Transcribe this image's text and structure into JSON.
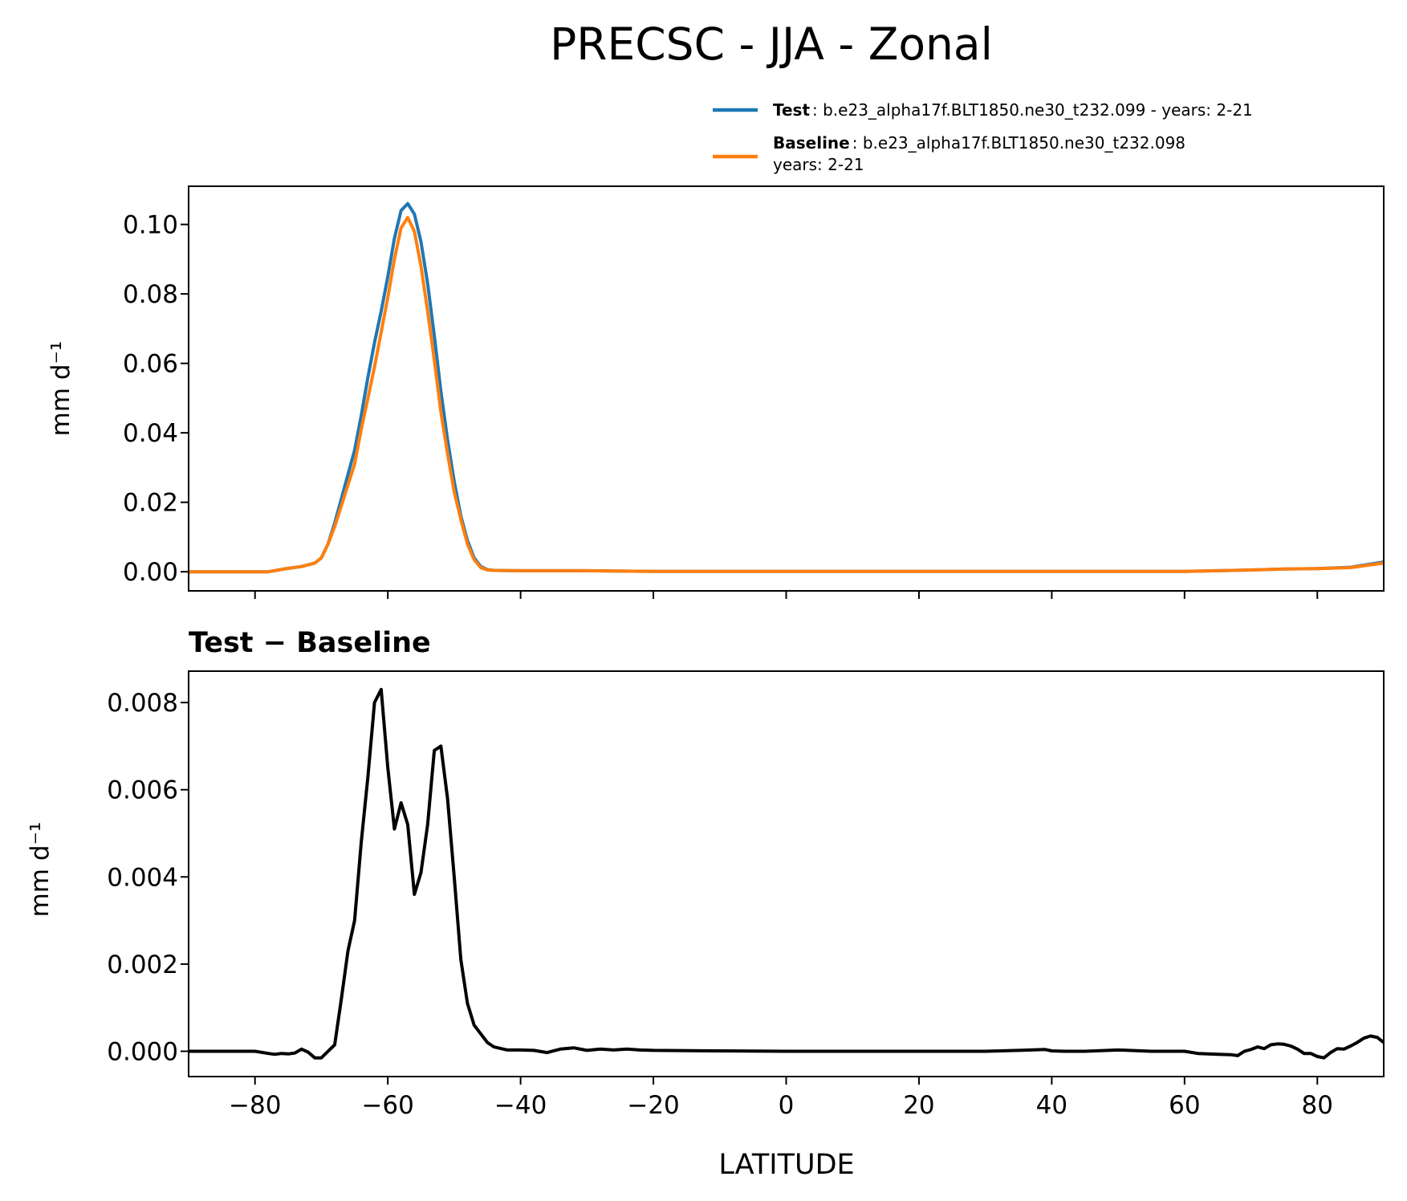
{
  "figure": {
    "title": "PRECSC - JJA - Zonal"
  },
  "legend": [
    {
      "name": "Test",
      "desc": ": b.e23_alpha17f.BLT1850.ne30_t232.099 - years: 2-21",
      "desc2": "",
      "color": "#1f77b4"
    },
    {
      "name": "Baseline",
      "desc": ": b.e23_alpha17f.BLT1850.ne30_t232.098",
      "desc2": "years: 2-21",
      "color": "#ff7f0e"
    }
  ],
  "chart_data": [
    {
      "type": "line",
      "title": "",
      "xlabel": "",
      "ylabel": "mm d⁻¹",
      "xlim": [
        -90,
        90
      ],
      "ylim": [
        -0.0055,
        0.111
      ],
      "xticks": [
        -80,
        -60,
        -40,
        -20,
        0,
        20,
        40,
        60,
        80
      ],
      "yticks": [
        0.0,
        0.02,
        0.04,
        0.06,
        0.08,
        0.1
      ],
      "ytick_labels": [
        "0.00",
        "0.02",
        "0.04",
        "0.06",
        "0.08",
        "0.10"
      ],
      "show_xtick_labels": false,
      "series": [
        {
          "name": "Test",
          "color": "#1f77b4",
          "x": [
            -90,
            -80,
            -78,
            -75,
            -73,
            -71,
            -70,
            -69,
            -68,
            -67,
            -66,
            -65,
            -64,
            -63,
            -62,
            -61,
            -60,
            -59,
            -58,
            -57,
            -56,
            -55,
            -54,
            -53,
            -52,
            -51,
            -50,
            -49,
            -48,
            -47,
            -46,
            -45,
            -44,
            -40,
            -35,
            -30,
            -20,
            0,
            20,
            40,
            60,
            65,
            70,
            75,
            80,
            85,
            90
          ],
          "y": [
            0,
            0,
            0,
            0.001,
            0.0015,
            0.0025,
            0.004,
            0.008,
            0.014,
            0.021,
            0.028,
            0.035,
            0.045,
            0.056,
            0.066,
            0.075,
            0.085,
            0.096,
            0.104,
            0.106,
            0.103,
            0.095,
            0.083,
            0.068,
            0.052,
            0.038,
            0.026,
            0.016,
            0.009,
            0.004,
            0.0015,
            0.0006,
            0.0004,
            0.0003,
            0.0003,
            0.0003,
            0.0001,
            0.0001,
            0.0001,
            0.0001,
            0.0001,
            0.0003,
            0.0005,
            0.0008,
            0.0009,
            0.0013,
            0.0028
          ]
        },
        {
          "name": "Baseline",
          "color": "#ff7f0e",
          "x": [
            -90,
            -80,
            -78,
            -75,
            -73,
            -71,
            -70,
            -69,
            -68,
            -67,
            -66,
            -65,
            -64,
            -63,
            -62,
            -61,
            -60,
            -59,
            -58,
            -57,
            -56,
            -55,
            -54,
            -53,
            -52,
            -51,
            -50,
            -49,
            -48,
            -47,
            -46,
            -45,
            -44,
            -40,
            -35,
            -30,
            -20,
            0,
            20,
            40,
            60,
            65,
            70,
            75,
            80,
            85,
            90
          ],
          "y": [
            0,
            0,
            0,
            0.001,
            0.0015,
            0.0025,
            0.004,
            0.008,
            0.013,
            0.019,
            0.025,
            0.031,
            0.041,
            0.05,
            0.059,
            0.069,
            0.079,
            0.09,
            0.099,
            0.102,
            0.098,
            0.088,
            0.075,
            0.061,
            0.046,
            0.034,
            0.023,
            0.015,
            0.008,
            0.0035,
            0.0012,
            0.0005,
            0.0004,
            0.0003,
            0.0003,
            0.0003,
            0.0001,
            0.0001,
            0.0001,
            0.0001,
            0.0001,
            0.0003,
            0.0005,
            0.0008,
            0.0009,
            0.0012,
            0.0025
          ]
        }
      ]
    },
    {
      "type": "line",
      "title": "Test − Baseline",
      "xlabel": "LATITUDE",
      "ylabel": "mm d⁻¹",
      "xlim": [
        -90,
        90
      ],
      "ylim": [
        -0.00058,
        0.00872
      ],
      "xticks": [
        -80,
        -60,
        -40,
        -20,
        0,
        20,
        40,
        60,
        80
      ],
      "yticks": [
        0.0,
        0.002,
        0.004,
        0.006,
        0.008
      ],
      "ytick_labels": [
        "0.000",
        "0.002",
        "0.004",
        "0.006",
        "0.008"
      ],
      "xtick_labels": [
        "−80",
        "−60",
        "−40",
        "−20",
        "0",
        "20",
        "40",
        "60",
        "80"
      ],
      "show_xtick_labels": true,
      "series": [
        {
          "name": "Test − Baseline",
          "color": "#000000",
          "x": [
            -90,
            -80,
            -78,
            -77,
            -76,
            -75,
            -74,
            -73,
            -72,
            -71,
            -70,
            -69,
            -68,
            -67,
            -66,
            -65,
            -64,
            -63,
            -62,
            -61,
            -60,
            -59,
            -58,
            -57,
            -56,
            -55,
            -54,
            -53,
            -52,
            -51,
            -50,
            -49,
            -48,
            -47,
            -46,
            -45,
            -44,
            -42,
            -40,
            -38,
            -36,
            -34,
            -32,
            -30,
            -28,
            -26,
            -24,
            -22,
            -20,
            -10,
            0,
            10,
            20,
            30,
            35,
            39,
            40,
            42,
            45,
            50,
            55,
            60,
            62,
            65,
            67,
            68,
            69,
            70,
            71,
            72,
            73,
            74,
            75,
            76,
            77,
            78,
            79,
            80,
            81,
            82,
            83,
            84,
            85,
            86,
            87,
            88,
            89,
            90
          ],
          "y": [
            0,
            0,
            -5e-05,
            -7e-05,
            -5e-05,
            -6e-05,
            -4e-05,
            5e-05,
            -2e-05,
            -0.00015,
            -0.00015,
            0,
            0.00015,
            0.0012,
            0.0023,
            0.003,
            0.0048,
            0.0063,
            0.008,
            0.0083,
            0.0065,
            0.0051,
            0.0057,
            0.0052,
            0.0036,
            0.0041,
            0.0052,
            0.0069,
            0.007,
            0.0058,
            0.004,
            0.0021,
            0.0011,
            0.0006,
            0.0004,
            0.0002,
            0.0001,
            3e-05,
            3e-05,
            2e-05,
            -3e-05,
            5e-05,
            8e-05,
            2e-05,
            5e-05,
            3e-05,
            5e-05,
            3e-05,
            2e-05,
            1e-05,
            0,
            0,
            0,
            0,
            2e-05,
            4e-05,
            1e-05,
            0,
            0,
            3e-05,
            0,
            0,
            -5e-05,
            -7e-05,
            -8e-05,
            -0.0001,
            0,
            4e-05,
            0.0001,
            6e-05,
            0.00015,
            0.00017,
            0.00016,
            0.00012,
            5e-05,
            -5e-05,
            -5e-05,
            -0.00012,
            -0.00015,
            -3e-05,
            6e-05,
            5e-05,
            0.00012,
            0.0002,
            0.0003,
            0.00035,
            0.00032,
            0.0002
          ]
        }
      ]
    }
  ]
}
